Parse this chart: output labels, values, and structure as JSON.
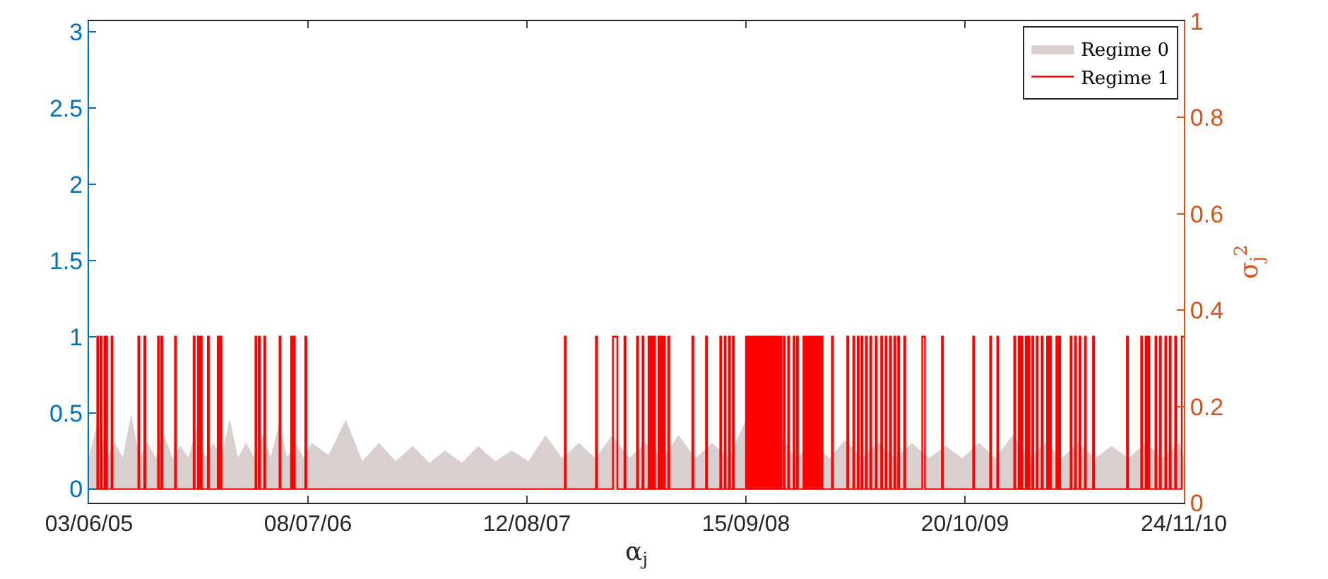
{
  "chart_data": {
    "type": "line",
    "xlabel": "α$_{j}$",
    "y2label": "σ$_{j}$$^{2}$",
    "xlim": [
      "2005-06-03",
      "2010-11-24"
    ],
    "xticks": [
      {
        "value": "2005-06-03",
        "label": "03/06/05"
      },
      {
        "value": "2006-07-08",
        "label": "08/07/06"
      },
      {
        "value": "2007-08-12",
        "label": "12/08/07"
      },
      {
        "value": "2008-09-15",
        "label": "15/09/08"
      },
      {
        "value": "2009-10-20",
        "label": "20/10/09"
      },
      {
        "value": "2010-11-24",
        "label": "24/11/10"
      }
    ],
    "ylim": [
      -0.09,
      3.07
    ],
    "yticks": [
      0,
      0.5,
      1,
      1.5,
      2,
      2.5,
      3
    ],
    "y2lim": [
      0,
      1
    ],
    "y2ticks": [
      0,
      0.2,
      0.4,
      0.6,
      0.8,
      1
    ],
    "grid": false,
    "legend": "top right",
    "marker": "none",
    "line_style": "solid",
    "series": [
      {
        "name": "Regime 0",
        "type": "area",
        "color": "#d9cfcf",
        "x": [
          "2005-06-03",
          "2005-06-20",
          "2005-07-05",
          "2005-07-20",
          "2005-08-04",
          "2005-08-19",
          "2005-09-03",
          "2005-09-18",
          "2005-10-03",
          "2005-10-18",
          "2005-11-02",
          "2005-11-17",
          "2005-12-02",
          "2005-12-17",
          "2006-01-01",
          "2006-01-16",
          "2006-01-31",
          "2006-02-15",
          "2006-03-02",
          "2006-03-17",
          "2006-04-01",
          "2006-04-16",
          "2006-05-01",
          "2006-05-16",
          "2006-05-31",
          "2006-06-15",
          "2006-06-30",
          "2006-07-15",
          "2006-08-15",
          "2006-09-15",
          "2006-10-15",
          "2006-11-15",
          "2006-12-15",
          "2007-01-15",
          "2007-02-15",
          "2007-03-15",
          "2007-04-15",
          "2007-05-15",
          "2007-06-15",
          "2007-07-15",
          "2007-08-15",
          "2007-09-15",
          "2007-10-15",
          "2007-11-15",
          "2007-12-15",
          "2008-01-15",
          "2008-02-15",
          "2008-03-15",
          "2008-04-15",
          "2008-05-15",
          "2008-06-15",
          "2008-07-15",
          "2008-08-15",
          "2008-09-15",
          "2008-10-15",
          "2008-11-15",
          "2008-12-15",
          "2009-01-15",
          "2009-02-15",
          "2009-03-15",
          "2009-04-15",
          "2009-05-15",
          "2009-06-15",
          "2009-07-15",
          "2009-08-15",
          "2009-09-15",
          "2009-10-15",
          "2009-11-15",
          "2009-12-15",
          "2010-01-15",
          "2010-02-15",
          "2010-03-15",
          "2010-04-15",
          "2010-05-15",
          "2010-06-15",
          "2010-07-15",
          "2010-08-15",
          "2010-09-15",
          "2010-10-15",
          "2010-11-15",
          "2010-11-24"
        ],
        "values": [
          0.2,
          0.45,
          0.2,
          0.3,
          0.2,
          0.48,
          0.2,
          0.3,
          0.2,
          0.35,
          0.2,
          0.28,
          0.2,
          0.4,
          0.2,
          0.3,
          0.2,
          0.45,
          0.2,
          0.3,
          0.2,
          0.35,
          0.2,
          0.42,
          0.2,
          0.3,
          0.2,
          0.3,
          0.22,
          0.45,
          0.18,
          0.3,
          0.18,
          0.28,
          0.17,
          0.25,
          0.17,
          0.28,
          0.18,
          0.25,
          0.18,
          0.35,
          0.2,
          0.3,
          0.2,
          0.35,
          0.2,
          0.3,
          0.2,
          0.35,
          0.2,
          0.3,
          0.2,
          0.45,
          0.2,
          0.35,
          0.2,
          0.3,
          0.2,
          0.32,
          0.2,
          0.3,
          0.2,
          0.3,
          0.2,
          0.28,
          0.2,
          0.3,
          0.2,
          0.35,
          0.2,
          0.3,
          0.2,
          0.3,
          0.2,
          0.28,
          0.2,
          0.3,
          0.2,
          0.3,
          0.2
        ]
      },
      {
        "name": "Regime 1",
        "type": "step",
        "color": "#ff0000",
        "x": [
          "2005-06-03",
          "2005-06-18",
          "2005-06-20",
          "2005-06-24",
          "2005-06-26",
          "2005-07-01",
          "2005-07-02",
          "2005-07-04",
          "2005-07-06",
          "2005-07-14",
          "2005-07-16",
          "2005-09-01",
          "2005-09-03",
          "2005-09-12",
          "2005-09-14",
          "2005-10-07",
          "2005-10-09",
          "2005-10-13",
          "2005-10-15",
          "2005-11-07",
          "2005-11-09",
          "2005-12-11",
          "2005-12-13",
          "2005-12-19",
          "2005-12-21",
          "2005-12-24",
          "2005-12-26",
          "2006-01-06",
          "2006-01-08",
          "2006-01-24",
          "2006-01-26",
          "2006-01-29",
          "2006-01-31",
          "2006-04-03",
          "2006-04-05",
          "2006-04-09",
          "2006-04-11",
          "2006-04-19",
          "2006-04-21",
          "2006-05-17",
          "2006-05-19",
          "2006-06-07",
          "2006-06-09",
          "2006-06-12",
          "2006-06-14",
          "2006-07-03",
          "2006-07-05",
          "2007-10-20",
          "2007-10-22",
          "2007-12-16",
          "2007-12-18",
          "2008-01-16",
          "2008-01-24",
          "2008-02-06",
          "2008-02-08",
          "2008-02-29",
          "2008-03-02",
          "2008-03-10",
          "2008-03-12",
          "2008-03-21",
          "2008-03-23",
          "2008-03-26",
          "2008-03-28",
          "2008-03-31",
          "2008-04-02",
          "2008-04-08",
          "2008-04-10",
          "2008-04-13",
          "2008-04-15",
          "2008-04-18",
          "2008-04-20",
          "2008-04-26",
          "2008-04-28",
          "2008-06-09",
          "2008-06-11",
          "2008-07-04",
          "2008-07-06",
          "2008-07-30",
          "2008-08-01",
          "2008-08-07",
          "2008-08-09",
          "2008-08-15",
          "2008-08-17",
          "2008-08-22",
          "2008-08-24",
          "2008-09-15",
          "2008-09-16",
          "2008-09-17",
          "2008-09-18",
          "2008-09-19",
          "2008-09-20",
          "2008-09-21",
          "2008-09-22",
          "2008-09-23",
          "2008-09-24",
          "2008-09-25",
          "2008-09-26",
          "2008-09-27",
          "2008-09-28",
          "2008-09-29",
          "2008-09-30",
          "2008-10-01",
          "2008-10-02",
          "2008-10-03",
          "2008-10-04",
          "2008-10-05",
          "2008-10-06",
          "2008-10-07",
          "2008-10-08",
          "2008-10-09",
          "2008-10-10",
          "2008-10-11",
          "2008-10-12",
          "2008-10-13",
          "2008-10-14",
          "2008-10-15",
          "2008-10-16",
          "2008-10-17",
          "2008-10-18",
          "2008-10-19",
          "2008-10-20",
          "2008-10-21",
          "2008-10-22",
          "2008-10-23",
          "2008-10-24",
          "2008-10-25",
          "2008-10-26",
          "2008-10-27",
          "2008-10-28",
          "2008-10-29",
          "2008-10-30",
          "2008-10-31",
          "2008-11-01",
          "2008-11-02",
          "2008-11-03",
          "2008-11-04",
          "2008-11-05",
          "2008-11-06",
          "2008-11-07",
          "2008-11-08",
          "2008-11-09",
          "2008-11-10",
          "2008-11-11",
          "2008-11-12",
          "2008-11-13",
          "2008-11-14",
          "2008-11-15",
          "2008-11-16",
          "2008-11-17",
          "2008-11-18",
          "2008-11-19",
          "2008-11-23",
          "2008-11-25",
          "2008-12-01",
          "2008-12-03",
          "2008-12-11",
          "2008-12-13",
          "2008-12-17",
          "2008-12-19",
          "2008-12-29",
          "2008-12-30",
          "2008-12-31",
          "2009-01-01",
          "2009-01-02",
          "2009-01-03",
          "2009-01-04",
          "2009-01-05",
          "2009-01-06",
          "2009-01-07",
          "2009-01-08",
          "2009-01-09",
          "2009-01-10",
          "2009-01-11",
          "2009-01-12",
          "2009-01-13",
          "2009-01-14",
          "2009-01-15",
          "2009-01-16",
          "2009-01-17",
          "2009-01-18",
          "2009-01-19",
          "2009-01-20",
          "2009-01-21",
          "2009-01-22",
          "2009-01-23",
          "2009-01-24",
          "2009-01-25",
          "2009-01-26",
          "2009-01-27",
          "2009-01-28",
          "2009-01-29",
          "2009-01-30",
          "2009-01-31",
          "2009-02-01",
          "2009-02-02",
          "2009-02-19",
          "2009-02-21",
          "2009-03-19",
          "2009-03-21",
          "2009-03-30",
          "2009-04-01",
          "2009-04-07",
          "2009-04-09",
          "2009-04-14",
          "2009-04-16",
          "2009-04-22",
          "2009-04-24",
          "2009-04-30",
          "2009-05-02",
          "2009-05-10",
          "2009-05-12",
          "2009-05-20",
          "2009-05-22",
          "2009-05-28",
          "2009-05-30",
          "2009-06-05",
          "2009-06-07",
          "2009-06-13",
          "2009-06-15",
          "2009-06-20",
          "2009-06-22",
          "2009-07-01",
          "2009-07-03",
          "2009-08-03",
          "2009-08-08",
          "2009-09-08",
          "2009-09-10",
          "2009-11-04",
          "2009-11-06",
          "2009-12-05",
          "2009-12-07",
          "2009-12-18",
          "2009-12-20",
          "2010-01-18",
          "2010-01-20",
          "2010-01-26",
          "2010-01-28",
          "2010-01-31",
          "2010-02-02",
          "2010-02-08",
          "2010-02-10",
          "2010-02-13",
          "2010-02-15",
          "2010-02-20",
          "2010-02-22",
          "2010-02-28",
          "2010-03-02",
          "2010-03-09",
          "2010-03-11",
          "2010-03-19",
          "2010-03-21",
          "2010-03-24",
          "2010-03-26",
          "2010-04-05",
          "2010-04-07",
          "2010-04-10",
          "2010-04-12",
          "2010-05-01",
          "2010-05-03",
          "2010-05-09",
          "2010-05-11",
          "2010-05-17",
          "2010-05-19",
          "2010-05-27",
          "2010-05-29",
          "2010-06-11",
          "2010-06-13",
          "2010-08-12",
          "2010-08-14",
          "2010-09-07",
          "2010-09-09",
          "2010-09-15",
          "2010-09-17",
          "2010-09-20",
          "2010-09-22",
          "2010-10-03",
          "2010-10-05",
          "2010-10-11",
          "2010-10-13",
          "2010-10-21",
          "2010-10-23",
          "2010-10-29",
          "2010-10-31",
          "2010-11-08",
          "2010-11-10",
          "2010-11-20",
          "2010-11-24"
        ],
        "values": [
          0,
          1,
          0,
          1,
          0,
          1,
          0,
          1,
          0,
          1,
          0,
          1,
          0,
          1,
          0,
          1,
          0,
          1,
          0,
          1,
          0,
          1,
          0,
          1,
          0,
          1,
          0,
          1,
          0,
          1,
          0,
          1,
          0,
          1,
          0,
          1,
          0,
          1,
          0,
          1,
          0,
          1,
          0,
          1,
          0,
          1,
          0,
          1,
          0,
          1,
          0,
          1,
          0,
          1,
          0,
          1,
          0,
          1,
          0,
          1,
          0,
          1,
          0,
          1,
          0,
          1,
          0,
          1,
          0,
          1,
          0,
          1,
          0,
          1,
          0,
          1,
          0,
          1,
          0,
          1,
          0,
          1,
          0,
          1,
          0,
          1,
          0,
          1,
          0,
          1,
          0,
          1,
          0,
          1,
          0,
          1,
          0,
          1,
          0,
          1,
          0,
          1,
          0,
          1,
          0,
          1,
          0,
          1,
          0,
          1,
          0,
          1,
          0,
          1,
          0,
          1,
          0,
          1,
          0,
          1,
          0,
          1,
          0,
          1,
          0,
          1,
          0,
          1,
          0,
          1,
          0,
          1,
          0,
          1,
          0,
          1,
          0,
          1,
          0,
          1,
          0,
          1,
          0,
          1,
          0,
          1,
          0,
          1,
          0,
          1,
          0,
          1,
          0,
          1,
          0,
          1,
          0,
          1,
          0,
          1,
          0,
          1,
          0,
          1,
          0,
          1,
          0,
          1,
          0,
          1,
          0,
          1,
          0,
          1,
          0,
          1,
          0,
          1,
          0,
          1,
          0,
          1,
          0,
          1,
          0,
          1,
          0,
          1,
          0,
          1,
          0,
          1,
          0,
          1,
          0,
          1,
          0,
          1,
          0,
          1,
          0,
          1,
          0,
          1,
          0,
          1,
          0,
          1,
          0,
          1,
          0,
          1,
          0,
          1,
          0,
          1,
          0,
          1,
          0,
          1,
          0,
          1,
          0,
          1,
          0,
          1,
          0,
          1,
          0,
          1,
          0,
          1,
          0,
          1,
          0,
          1,
          0,
          1,
          0,
          1,
          0,
          1,
          0,
          1,
          0,
          1,
          0,
          1,
          0,
          1,
          0,
          1,
          0,
          1,
          0,
          1,
          0,
          1,
          0,
          1,
          0,
          1,
          0,
          1,
          0,
          1,
          0,
          1,
          0,
          1,
          0,
          1,
          0,
          1,
          0,
          1,
          0,
          1,
          0,
          1,
          0,
          1,
          0,
          1,
          0,
          1,
          1
        ]
      }
    ]
  }
}
